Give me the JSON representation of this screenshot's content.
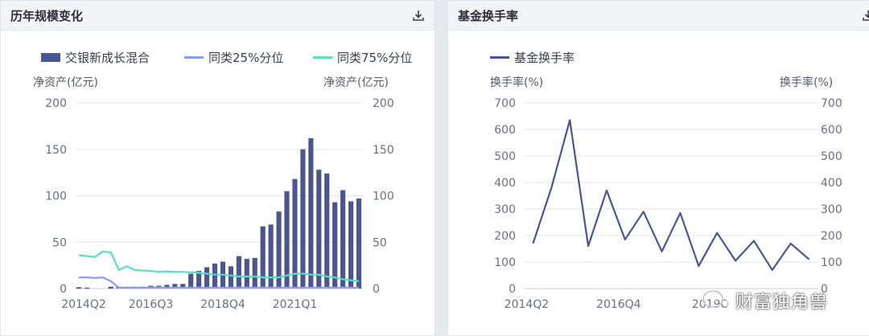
{
  "panels": {
    "scale": {
      "title": "历年规模变化",
      "download_icon": "download-icon"
    },
    "turnover": {
      "title": "基金换手率",
      "download_icon": "download-icon"
    }
  },
  "watermark": {
    "text": "财富独角兽",
    "icon": "wechat-icon"
  },
  "colors": {
    "bar": "#4b5592",
    "p25": "#8e9cf0",
    "p75": "#56e0c2",
    "turnover": "#4b5592",
    "grid": "#e4e5eb",
    "axis": "#c9cbd6"
  },
  "chart_data": [
    {
      "type": "bar",
      "title": "历年规模变化",
      "ylabel_left": "净资产(亿元)",
      "ylabel_right": "净资产(亿元)",
      "ylim": [
        0,
        200
      ],
      "yticks": [
        0,
        50,
        100,
        150,
        200
      ],
      "x_tick_labels": [
        "2014Q2",
        "2016Q3",
        "2018Q4",
        "2021Q1"
      ],
      "x_tick_index": [
        0,
        9,
        18,
        27
      ],
      "grid": true,
      "legend": "top",
      "series": [
        {
          "name": "交银新成长混合",
          "type": "bar",
          "values": [
            1.5,
            1,
            0,
            0,
            2,
            2,
            2,
            2,
            2,
            3,
            3,
            4,
            5,
            5,
            16,
            19,
            23,
            27,
            29,
            24,
            35,
            32,
            33,
            67,
            69,
            83,
            105,
            118,
            150,
            162,
            128,
            124,
            93,
            106,
            94,
            97
          ]
        },
        {
          "name": "同类25%分位",
          "type": "line",
          "values": [
            12,
            12,
            11.5,
            12,
            8,
            1,
            1,
            1,
            1,
            1,
            1,
            1,
            1,
            1,
            1,
            1,
            1,
            1,
            1,
            1,
            1,
            1,
            1,
            1,
            1,
            1,
            1,
            1,
            1,
            1,
            1,
            1,
            1,
            1,
            1,
            1
          ]
        },
        {
          "name": "同类75%分位",
          "type": "line",
          "values": [
            36,
            35,
            34,
            40,
            39,
            20,
            24,
            20,
            19.5,
            19,
            18,
            18.5,
            18,
            18,
            17.5,
            17,
            16,
            15,
            15,
            14,
            13,
            13,
            13,
            12,
            12,
            12,
            14,
            16,
            16,
            15,
            15,
            13,
            12,
            10,
            9,
            8
          ]
        }
      ]
    },
    {
      "type": "line",
      "title": "基金换手率",
      "ylabel_left": "换手率(%)",
      "ylabel_right": "换手率(%)",
      "ylim": [
        0,
        700
      ],
      "yticks": [
        0,
        100,
        200,
        300,
        400,
        500,
        600,
        700
      ],
      "x_tick_labels": [
        "2014Q2",
        "2016Q4",
        "2019Q",
        ""
      ],
      "x_tick_index": [
        0,
        5,
        10,
        15
      ],
      "grid": true,
      "legend": "top",
      "series": [
        {
          "name": "基金换手率",
          "values": [
            170,
            380,
            635,
            160,
            370,
            185,
            290,
            140,
            285,
            85,
            210,
            105,
            180,
            70,
            170,
            110
          ]
        }
      ]
    }
  ]
}
